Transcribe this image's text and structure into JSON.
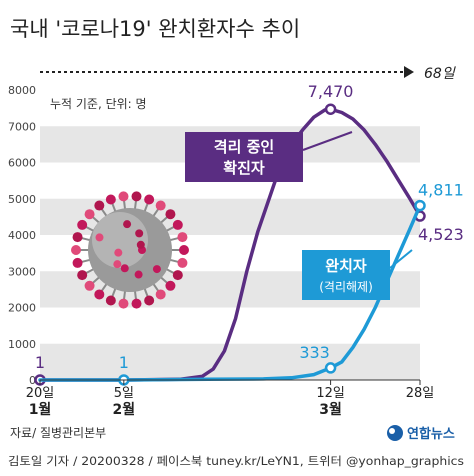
{
  "title": "국내 '코로나19' 완치환자수 추이",
  "duration_label": "68일",
  "unit_note": "누적 기준, 단위: 명",
  "source": "자료/ 질병관리본부",
  "credit": "김토일 기자 / 20200328 / 페이스북 tuney.kr/LeYN1, 트위터 @yonhap_graphics",
  "brand": "연합뉴스",
  "colors": {
    "isolated": "#5a2d82",
    "recovered": "#1e9ad6",
    "band": "#e6e6e6"
  },
  "chart_data": {
    "type": "line",
    "xlabel": "",
    "ylabel": "",
    "ylim": [
      0,
      8000
    ],
    "yticks": [
      0,
      1000,
      2000,
      3000,
      4000,
      5000,
      6000,
      7000,
      8000
    ],
    "x_ticks": [
      {
        "day": 0,
        "label": "20일",
        "month": "1월"
      },
      {
        "day": 15,
        "label": "5일",
        "month": "2월"
      },
      {
        "day": 52,
        "label": "12일",
        "month": "3월"
      },
      {
        "day": 68,
        "label": "28일",
        "month": ""
      }
    ],
    "series": [
      {
        "name": "격리 중인 확진자",
        "color": "#5a2d82",
        "points": [
          [
            0,
            1
          ],
          [
            15,
            1
          ],
          [
            25,
            20
          ],
          [
            29,
            100
          ],
          [
            31,
            300
          ],
          [
            33,
            800
          ],
          [
            35,
            1700
          ],
          [
            37,
            3000
          ],
          [
            39,
            4100
          ],
          [
            41,
            5000
          ],
          [
            43,
            5900
          ],
          [
            45,
            6500
          ],
          [
            47,
            6900
          ],
          [
            49,
            7250
          ],
          [
            51,
            7450
          ],
          [
            52,
            7470
          ],
          [
            54,
            7380
          ],
          [
            56,
            7200
          ],
          [
            58,
            6900
          ],
          [
            60,
            6500
          ],
          [
            62,
            6050
          ],
          [
            64,
            5550
          ],
          [
            66,
            5050
          ],
          [
            68,
            4523
          ]
        ],
        "labels": [
          {
            "text": "1",
            "x": 0,
            "y": 1
          },
          {
            "text": "7,470",
            "x": 52,
            "y": 7470
          },
          {
            "text": "4,523",
            "x": 68,
            "y": 4523
          }
        ]
      },
      {
        "name": "완치자",
        "sublabel": "(격리해제)",
        "color": "#1e9ad6",
        "points": [
          [
            0,
            0
          ],
          [
            15,
            1
          ],
          [
            30,
            20
          ],
          [
            40,
            30
          ],
          [
            45,
            60
          ],
          [
            49,
            150
          ],
          [
            52,
            333
          ],
          [
            54,
            500
          ],
          [
            56,
            900
          ],
          [
            58,
            1400
          ],
          [
            60,
            2000
          ],
          [
            62,
            2700
          ],
          [
            64,
            3400
          ],
          [
            66,
            4100
          ],
          [
            68,
            4811
          ]
        ],
        "labels": [
          {
            "text": "1",
            "x": 15,
            "y": 1
          },
          {
            "text": "333",
            "x": 52,
            "y": 333
          },
          {
            "text": "4,811",
            "x": 68,
            "y": 4811
          }
        ]
      }
    ]
  }
}
